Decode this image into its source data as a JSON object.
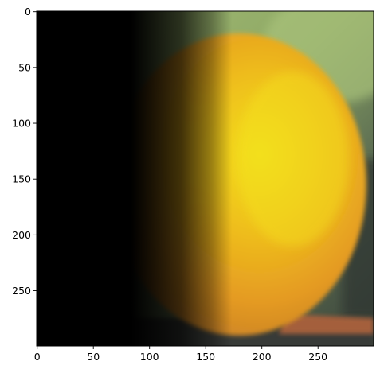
{
  "image_axes": {
    "x_ticks": [
      0,
      50,
      100,
      150,
      200,
      250
    ],
    "y_ticks": [
      0,
      50,
      100,
      150,
      200,
      250
    ],
    "x_range": [
      -0.5,
      299.5
    ],
    "y_range": [
      299.5,
      -0.5
    ]
  },
  "scene": {
    "subject": "orange",
    "colors": {
      "background_green": "#8fa867",
      "background_dark": "#3e4a39",
      "orange_light": "#f0d21a",
      "orange_mid": "#e8a51f",
      "orange_edge": "#cf8522",
      "fade_black": "#000000",
      "table": "#3a3b38",
      "reddish_object": "#b5643a"
    }
  }
}
